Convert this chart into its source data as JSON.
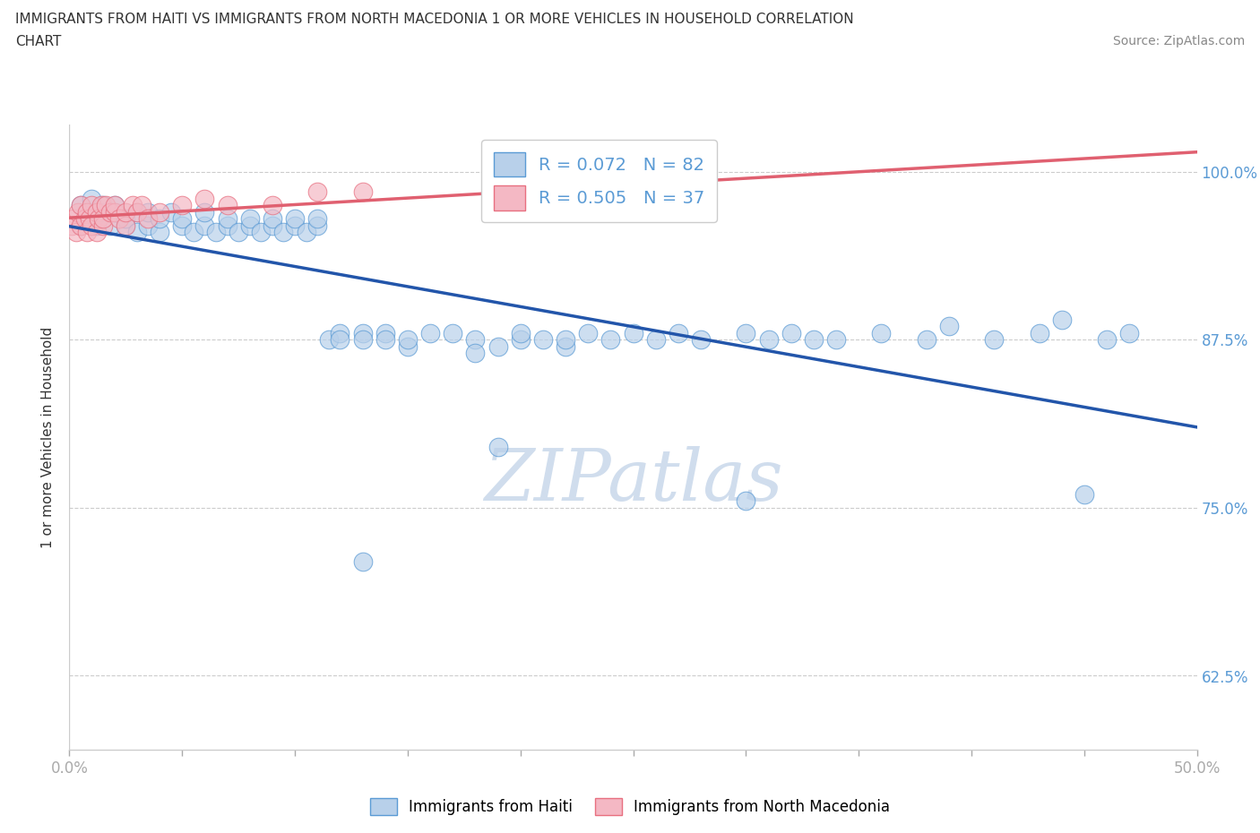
{
  "title_line1": "IMMIGRANTS FROM HAITI VS IMMIGRANTS FROM NORTH MACEDONIA 1 OR MORE VEHICLES IN HOUSEHOLD CORRELATION",
  "title_line2": "CHART",
  "source": "Source: ZipAtlas.com",
  "ylabel": "1 or more Vehicles in Household",
  "xlim": [
    0.0,
    0.5
  ],
  "ylim": [
    0.57,
    1.035
  ],
  "xticks": [
    0.0,
    0.05,
    0.1,
    0.15,
    0.2,
    0.25,
    0.3,
    0.35,
    0.4,
    0.45,
    0.5
  ],
  "ytick_positions": [
    0.625,
    0.75,
    0.875,
    1.0
  ],
  "ytick_labels": [
    "62.5%",
    "75.0%",
    "87.5%",
    "100.0%"
  ],
  "R_haiti": 0.072,
  "N_haiti": 82,
  "R_macedonia": 0.505,
  "N_macedonia": 37,
  "color_haiti_fill": "#b8d0ea",
  "color_haiti_edge": "#5b9bd5",
  "color_mac_fill": "#f4b8c4",
  "color_mac_edge": "#e87080",
  "color_haiti_line": "#2255aa",
  "color_mac_line": "#e06070",
  "watermark_color": "#d0dded",
  "haiti_x": [
    0.005,
    0.005,
    0.008,
    0.01,
    0.01,
    0.012,
    0.015,
    0.015,
    0.018,
    0.02,
    0.02,
    0.025,
    0.025,
    0.03,
    0.03,
    0.035,
    0.035,
    0.04,
    0.04,
    0.045,
    0.05,
    0.05,
    0.055,
    0.06,
    0.06,
    0.065,
    0.07,
    0.07,
    0.075,
    0.08,
    0.08,
    0.085,
    0.09,
    0.09,
    0.095,
    0.1,
    0.1,
    0.105,
    0.11,
    0.11,
    0.115,
    0.12,
    0.12,
    0.13,
    0.13,
    0.14,
    0.14,
    0.15,
    0.15,
    0.16,
    0.17,
    0.18,
    0.18,
    0.19,
    0.2,
    0.2,
    0.21,
    0.22,
    0.22,
    0.23,
    0.24,
    0.25,
    0.26,
    0.27,
    0.28,
    0.3,
    0.31,
    0.32,
    0.33,
    0.34,
    0.36,
    0.38,
    0.39,
    0.41,
    0.43,
    0.44,
    0.46,
    0.47,
    0.13,
    0.19,
    0.3,
    0.45
  ],
  "haiti_y": [
    0.975,
    0.96,
    0.97,
    0.97,
    0.98,
    0.96,
    0.97,
    0.975,
    0.96,
    0.97,
    0.975,
    0.96,
    0.965,
    0.955,
    0.97,
    0.96,
    0.97,
    0.955,
    0.965,
    0.97,
    0.96,
    0.965,
    0.955,
    0.96,
    0.97,
    0.955,
    0.96,
    0.965,
    0.955,
    0.96,
    0.965,
    0.955,
    0.96,
    0.965,
    0.955,
    0.96,
    0.965,
    0.955,
    0.96,
    0.965,
    0.875,
    0.88,
    0.875,
    0.88,
    0.875,
    0.88,
    0.875,
    0.87,
    0.875,
    0.88,
    0.88,
    0.875,
    0.865,
    0.87,
    0.875,
    0.88,
    0.875,
    0.87,
    0.875,
    0.88,
    0.875,
    0.88,
    0.875,
    0.88,
    0.875,
    0.88,
    0.875,
    0.88,
    0.875,
    0.875,
    0.88,
    0.875,
    0.885,
    0.875,
    0.88,
    0.89,
    0.875,
    0.88,
    0.71,
    0.795,
    0.755,
    0.76
  ],
  "macedonia_x": [
    0.001,
    0.002,
    0.003,
    0.004,
    0.005,
    0.005,
    0.007,
    0.008,
    0.008,
    0.009,
    0.01,
    0.01,
    0.012,
    0.012,
    0.013,
    0.014,
    0.015,
    0.015,
    0.016,
    0.018,
    0.02,
    0.02,
    0.022,
    0.025,
    0.025,
    0.028,
    0.03,
    0.032,
    0.035,
    0.04,
    0.05,
    0.06,
    0.07,
    0.09,
    0.11,
    0.13,
    0.22
  ],
  "macedonia_y": [
    0.96,
    0.965,
    0.955,
    0.97,
    0.96,
    0.975,
    0.965,
    0.955,
    0.97,
    0.965,
    0.96,
    0.975,
    0.955,
    0.97,
    0.965,
    0.975,
    0.96,
    0.965,
    0.975,
    0.97,
    0.97,
    0.975,
    0.965,
    0.96,
    0.97,
    0.975,
    0.97,
    0.975,
    0.965,
    0.97,
    0.975,
    0.98,
    0.975,
    0.975,
    0.985,
    0.985,
    0.975
  ]
}
